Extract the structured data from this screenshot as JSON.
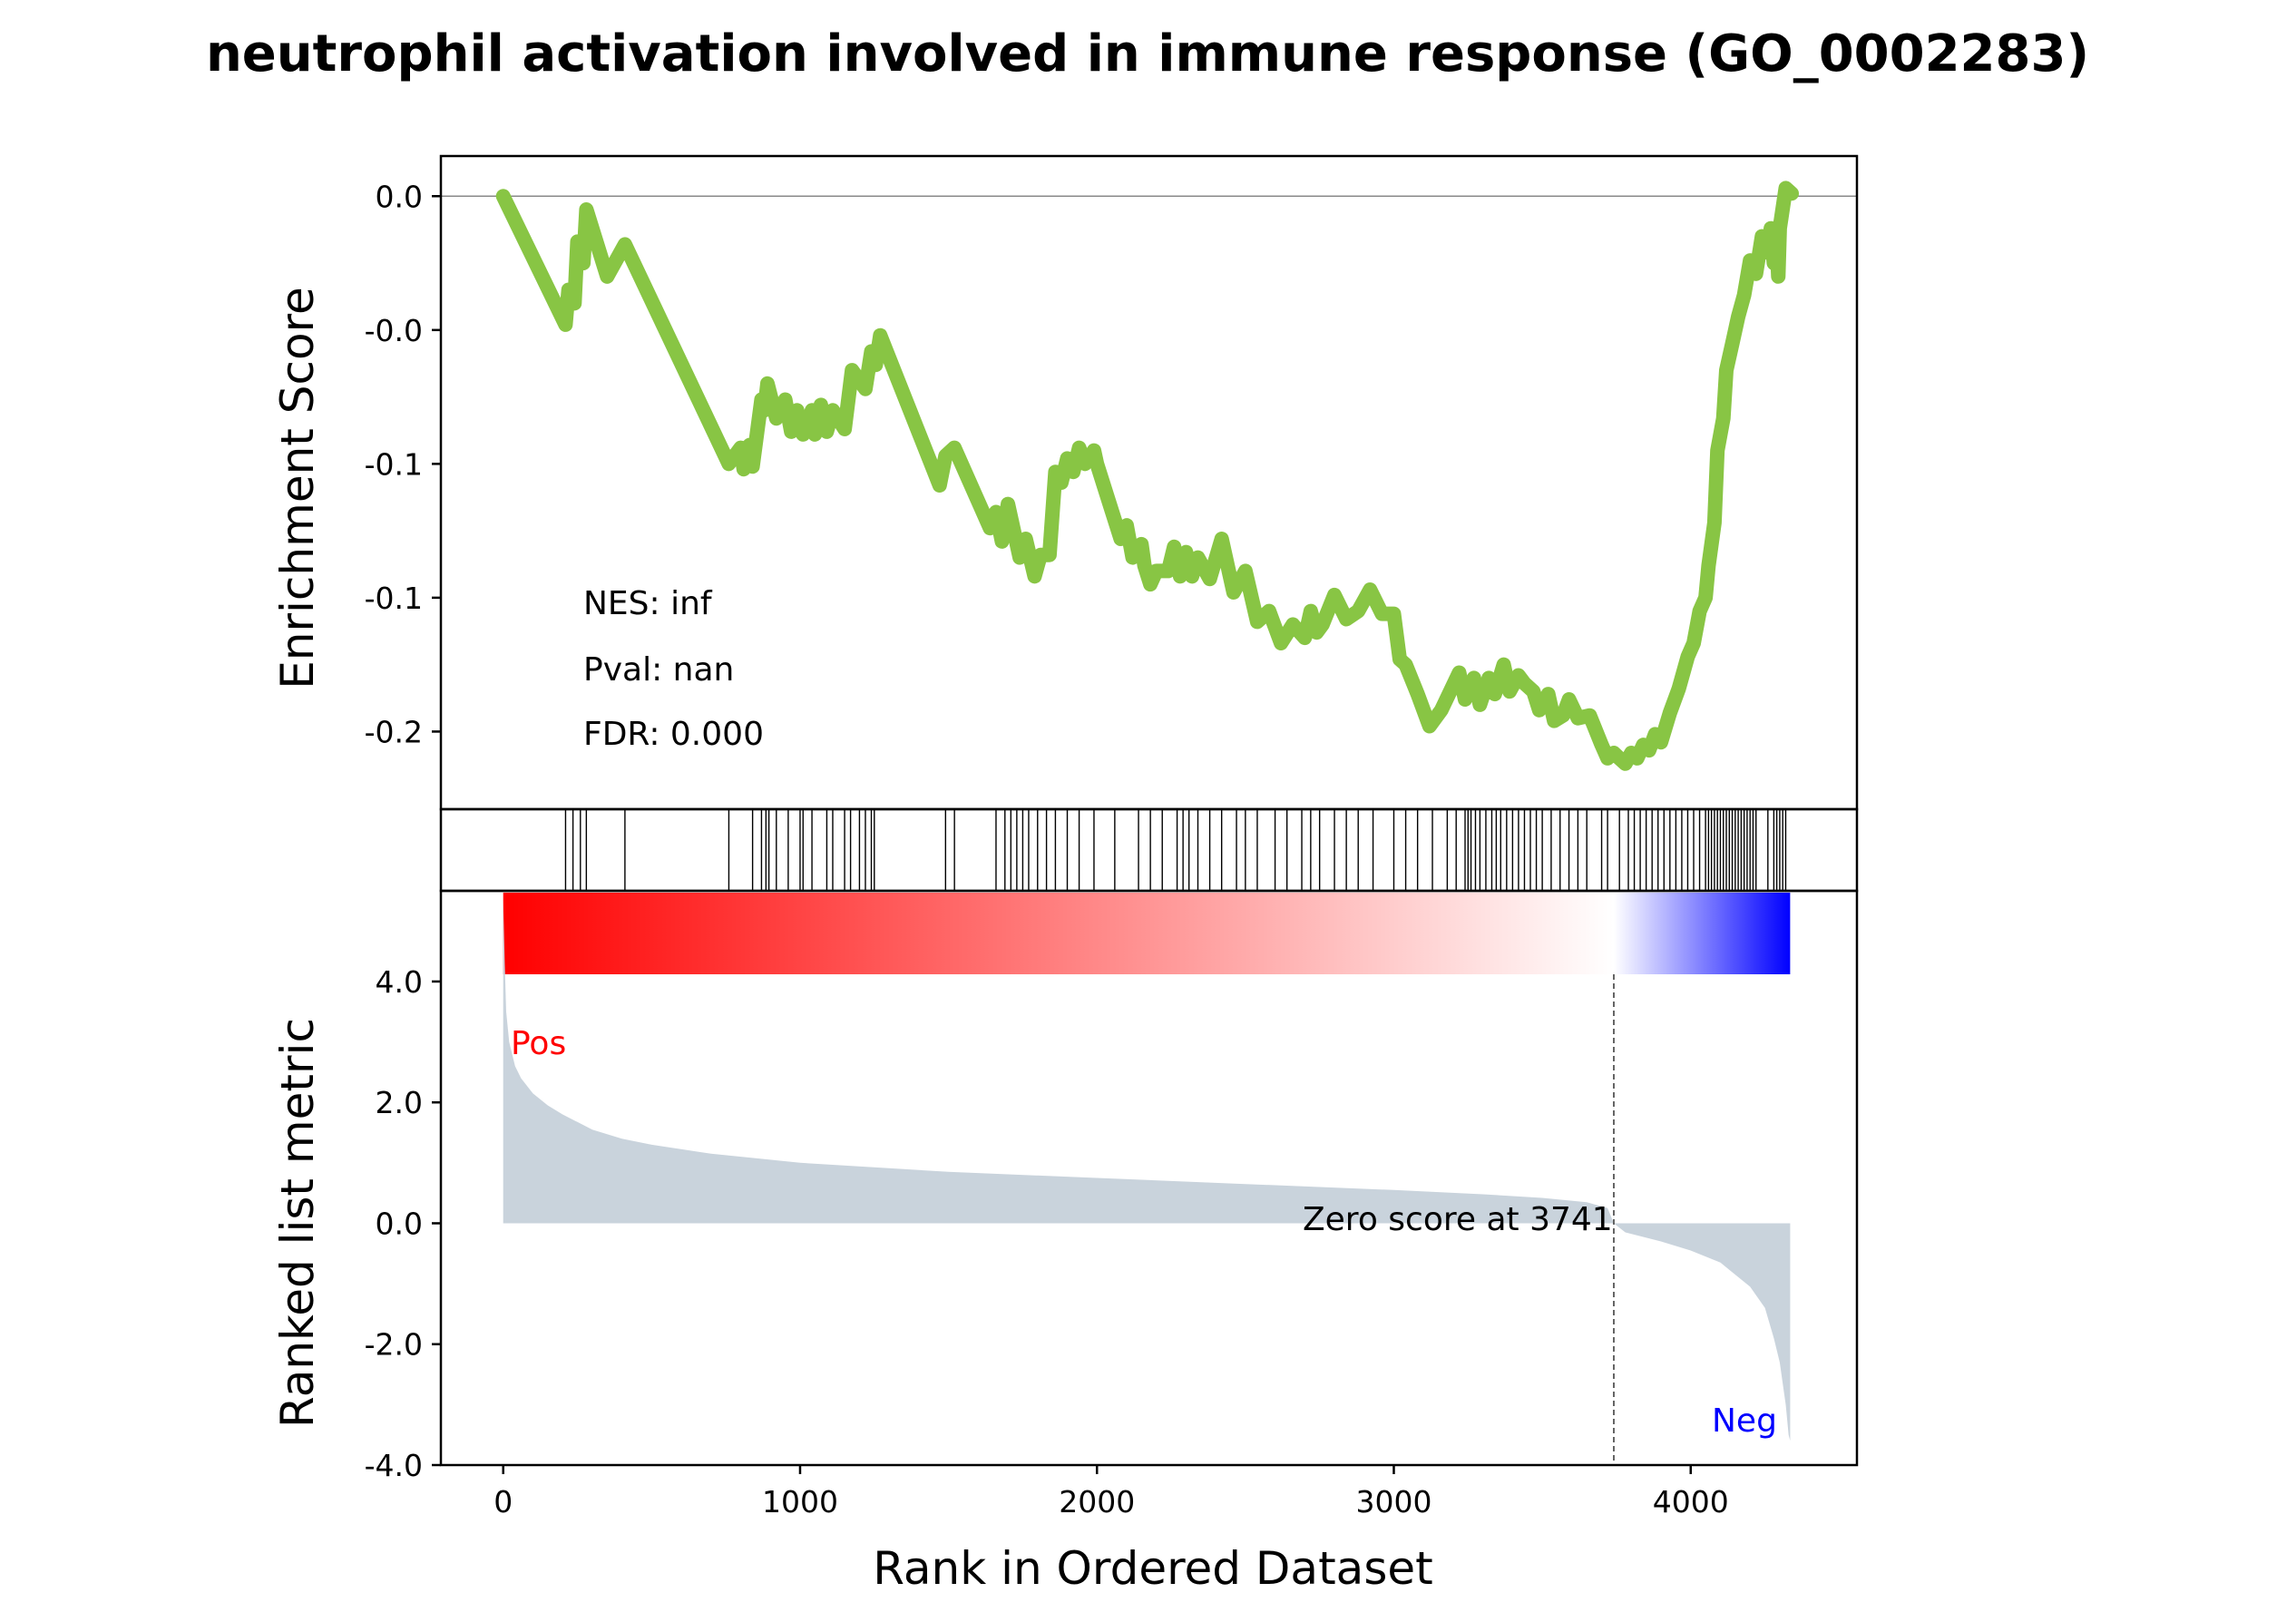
{
  "chart_data": {
    "type": "line",
    "title": "neutrophil activation involved in immune response (GO_0002283)",
    "xlabel": "Rank in Ordered Dataset",
    "xlim": [
      -210,
      4560
    ],
    "x_ticks": [
      0,
      1000,
      2000,
      3000,
      4000
    ],
    "x_tick_labels": [
      "0",
      "1000",
      "2000",
      "3000",
      "4000"
    ],
    "enrichment_panel": {
      "ylabel": "Enrichment Score",
      "ylim": [
        -0.229,
        0.015
      ],
      "y_ticks": [
        0.0,
        -0.05,
        -0.1,
        -0.15,
        -0.2
      ],
      "y_tick_labels": [
        "0.0",
        "-0.0",
        "-0.1",
        "-0.1",
        "-0.2"
      ],
      "line_color": "#88c544",
      "series": [
        {
          "x": [
            0,
            210,
            220,
            240,
            250,
            270,
            280,
            350,
            410,
            760,
            800,
            810,
            830,
            840,
            870,
            880,
            890,
            920,
            950,
            970,
            990,
            1010,
            1040,
            1050,
            1070,
            1090,
            1110,
            1150,
            1175,
            1220,
            1240,
            1255,
            1270,
            1470,
            1490,
            1520,
            1640,
            1660,
            1680,
            1700,
            1740,
            1760,
            1790,
            1810,
            1840,
            1860,
            1880,
            1900,
            1920,
            1940,
            1960,
            1990,
            2000,
            2040,
            2080,
            2100,
            2120,
            2150,
            2160,
            2180,
            2200,
            2240,
            2260,
            2280,
            2300,
            2320,
            2340,
            2380,
            2420,
            2460,
            2500,
            2540,
            2580,
            2620,
            2660,
            2700,
            2720,
            2740,
            2760,
            2800,
            2840,
            2880,
            2920,
            2960,
            3000,
            3020,
            3040,
            3080,
            3120,
            3160,
            3220,
            3240,
            3270,
            3290,
            3320,
            3340,
            3370,
            3390,
            3420,
            3440,
            3470,
            3490,
            3520,
            3540,
            3570,
            3590,
            3620,
            3660,
            3700,
            3720,
            3741,
            3760,
            3780,
            3800,
            3820,
            3840,
            3860,
            3880,
            3900,
            3930,
            3960,
            3990,
            4010,
            4030,
            4050,
            4060,
            4080,
            4090,
            4110,
            4120,
            4140,
            4160,
            4180,
            4200,
            4220,
            4240,
            4260,
            4270,
            4280,
            4290,
            4295,
            4300,
            4320,
            4340
          ],
          "y": [
            0.0,
            -0.048,
            -0.035,
            -0.04,
            -0.017,
            -0.025,
            -0.005,
            -0.03,
            -0.018,
            -0.1,
            -0.094,
            -0.102,
            -0.093,
            -0.101,
            -0.076,
            -0.08,
            -0.07,
            -0.083,
            -0.076,
            -0.088,
            -0.08,
            -0.089,
            -0.08,
            -0.089,
            -0.078,
            -0.088,
            -0.08,
            -0.087,
            -0.065,
            -0.072,
            -0.058,
            -0.063,
            -0.052,
            -0.108,
            -0.097,
            -0.094,
            -0.124,
            -0.118,
            -0.129,
            -0.115,
            -0.135,
            -0.128,
            -0.142,
            -0.134,
            -0.134,
            -0.103,
            -0.107,
            -0.098,
            -0.103,
            -0.094,
            -0.1,
            -0.095,
            -0.1,
            -0.114,
            -0.128,
            -0.123,
            -0.135,
            -0.13,
            -0.138,
            -0.145,
            -0.14,
            -0.14,
            -0.131,
            -0.142,
            -0.133,
            -0.142,
            -0.135,
            -0.143,
            -0.128,
            -0.148,
            -0.14,
            -0.159,
            -0.155,
            -0.167,
            -0.16,
            -0.165,
            -0.155,
            -0.163,
            -0.16,
            -0.149,
            -0.158,
            -0.155,
            -0.147,
            -0.156,
            -0.156,
            -0.173,
            -0.175,
            -0.186,
            -0.198,
            -0.192,
            -0.178,
            -0.188,
            -0.18,
            -0.19,
            -0.18,
            -0.186,
            -0.175,
            -0.185,
            -0.179,
            -0.182,
            -0.185,
            -0.192,
            -0.186,
            -0.196,
            -0.194,
            -0.188,
            -0.195,
            -0.194,
            -0.205,
            -0.21,
            -0.208,
            -0.21,
            -0.212,
            -0.208,
            -0.21,
            -0.205,
            -0.207,
            -0.201,
            -0.204,
            -0.193,
            -0.184,
            -0.172,
            -0.167,
            -0.155,
            -0.15,
            -0.138,
            -0.122,
            -0.095,
            -0.083,
            -0.065,
            -0.055,
            -0.045,
            -0.037,
            -0.024,
            -0.029,
            -0.015,
            -0.021,
            -0.012,
            -0.025,
            -0.017,
            -0.03,
            -0.012,
            0.003,
            0.001
          ]
        }
      ],
      "annotations": [
        "NES: inf",
        "Pval: nan",
        "FDR: 0.000"
      ]
    },
    "hit_panel": {
      "hit_ranks": [
        210,
        235,
        260,
        280,
        410,
        760,
        840,
        870,
        885,
        895,
        920,
        960,
        1000,
        1010,
        1040,
        1090,
        1110,
        1150,
        1170,
        1200,
        1220,
        1240,
        1250,
        1490,
        1520,
        1660,
        1690,
        1710,
        1730,
        1750,
        1770,
        1800,
        1830,
        1860,
        1900,
        1940,
        1990,
        2060,
        2140,
        2180,
        2220,
        2270,
        2290,
        2310,
        2340,
        2380,
        2420,
        2470,
        2500,
        2540,
        2600,
        2640,
        2690,
        2720,
        2750,
        2800,
        2840,
        2880,
        2930,
        3000,
        3040,
        3080,
        3130,
        3180,
        3210,
        3240,
        3250,
        3260,
        3275,
        3290,
        3310,
        3330,
        3345,
        3360,
        3380,
        3400,
        3420,
        3440,
        3460,
        3480,
        3500,
        3530,
        3560,
        3590,
        3620,
        3650,
        3700,
        3720,
        3760,
        3790,
        3810,
        3830,
        3850,
        3870,
        3890,
        3910,
        3930,
        3950,
        3970,
        3990,
        4010,
        4030,
        4050,
        4060,
        4070,
        4080,
        4090,
        4100,
        4110,
        4120,
        4130,
        4140,
        4150,
        4160,
        4170,
        4180,
        4190,
        4200,
        4210,
        4220,
        4260,
        4280,
        4290,
        4300,
        4310,
        4320
      ]
    },
    "colorbar": {
      "from_color": "#ff0000",
      "mid_color": "#ffffff",
      "to_color": "#0000ff",
      "mid_rank": 3741
    },
    "ranked_panel": {
      "ylabel": "Ranked list metric",
      "ylim": [
        -4.0,
        5.5
      ],
      "y_ticks": [
        4.0,
        2.0,
        0.0,
        -2.0,
        -4.0
      ],
      "y_tick_labels": [
        "4.0",
        "2.0",
        "0.0",
        "-2.0",
        "-4.0"
      ],
      "fill_color": "#c9d3dc",
      "x": [
        0,
        5,
        10,
        20,
        40,
        60,
        100,
        150,
        200,
        300,
        400,
        500,
        700,
        1000,
        1500,
        2000,
        2500,
        3000,
        3300,
        3500,
        3650,
        3720,
        3741,
        3780,
        3900,
        4000,
        4100,
        4200,
        4250,
        4280,
        4300,
        4320,
        4330,
        4335
      ],
      "values": [
        5.35,
        4.3,
        3.5,
        3.0,
        2.6,
        2.4,
        2.15,
        1.95,
        1.8,
        1.55,
        1.4,
        1.3,
        1.15,
        1.0,
        0.85,
        0.75,
        0.65,
        0.55,
        0.48,
        0.42,
        0.35,
        0.25,
        0.0,
        -0.15,
        -0.3,
        -0.45,
        -0.65,
        -1.05,
        -1.4,
        -1.9,
        -2.3,
        -3.0,
        -3.5,
        -3.6
      ],
      "pos_label": "Pos",
      "neg_label": "Neg",
      "zero_label": "Zero score at 3741",
      "pos_color": "#ff0000",
      "neg_color": "#0000ff"
    }
  }
}
